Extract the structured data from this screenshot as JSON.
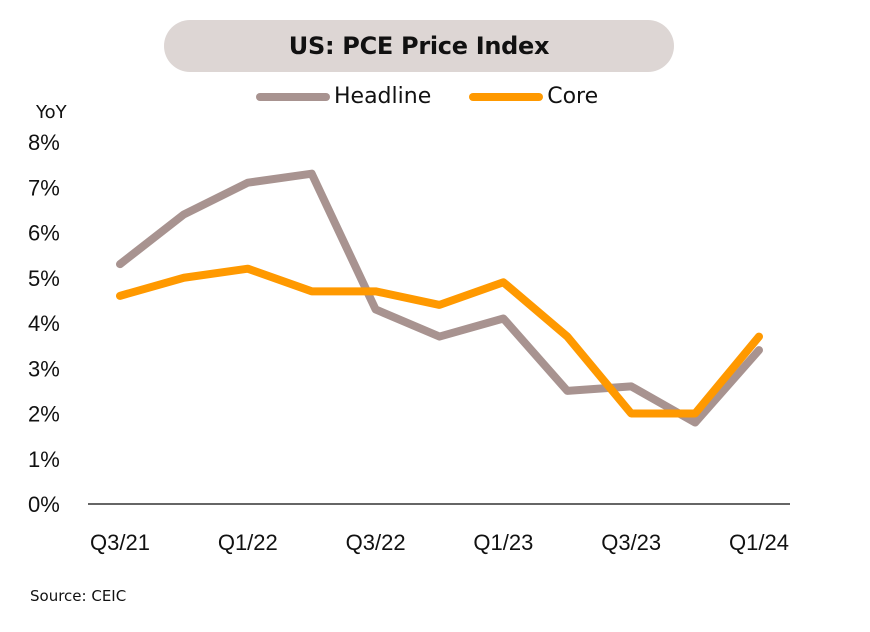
{
  "title": "US: PCE Price Index",
  "source": "Source: CEIC",
  "chart_data": {
    "type": "line",
    "title": "US: PCE Price Index",
    "xlabel": "",
    "ylabel": "YoY",
    "ylim": [
      0,
      8
    ],
    "yticks": [
      "0%",
      "1%",
      "2%",
      "3%",
      "4%",
      "5%",
      "6%",
      "7%",
      "8%"
    ],
    "ytick_values": [
      0,
      1,
      2,
      3,
      4,
      5,
      6,
      7,
      8
    ],
    "x": [
      "Q3/21",
      "Q4/21",
      "Q1/22",
      "Q2/22",
      "Q3/22",
      "Q4/22",
      "Q1/23",
      "Q2/23",
      "Q3/23",
      "Q4/23",
      "Q1/24"
    ],
    "xtick_labels": [
      "Q3/21",
      "Q1/22",
      "Q3/22",
      "Q1/23",
      "Q3/23",
      "Q1/24"
    ],
    "xtick_indices": [
      0,
      2,
      4,
      6,
      8,
      10
    ],
    "grid": false,
    "legend_position": "top-center",
    "series": [
      {
        "name": "Headline",
        "color": "#a89390",
        "values": [
          5.3,
          6.4,
          7.1,
          7.3,
          4.3,
          3.7,
          4.1,
          2.5,
          2.6,
          1.8,
          3.4
        ]
      },
      {
        "name": "Core",
        "color": "#ff9900",
        "values": [
          4.6,
          5.0,
          5.2,
          4.7,
          4.7,
          4.4,
          4.9,
          3.7,
          2.0,
          2.0,
          3.7
        ]
      }
    ]
  }
}
